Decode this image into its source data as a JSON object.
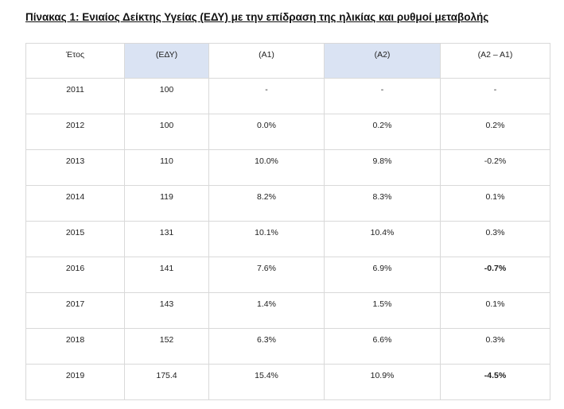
{
  "title": "Πίνακας 1: Ενιαίος Δείκτης Υγείας (ΕΔΥ) με την επίδραση της ηλικίας και ρυθμοί μεταβολής",
  "table": {
    "header": [
      "Έτος",
      "(ΕΔΥ)",
      "(Α1)",
      "(Α2)",
      "(Α2 – Α1)"
    ],
    "rows": [
      [
        "2011",
        "100",
        "-",
        "-",
        "-"
      ],
      [
        "2012",
        "100",
        "0.0%",
        "0.2%",
        "0.2%"
      ],
      [
        "2013",
        "110",
        "10.0%",
        "9.8%",
        "-0.2%"
      ],
      [
        "2014",
        "119",
        "8.2%",
        "8.3%",
        "0.1%"
      ],
      [
        "2015",
        "131",
        "10.1%",
        "10.4%",
        "0.3%"
      ],
      [
        "2016",
        "141",
        "7.6%",
        "6.9%",
        "-0.7%"
      ],
      [
        "2017",
        "143",
        "1.4%",
        "1.5%",
        "0.1%"
      ],
      [
        "2018",
        "152",
        "6.3%",
        "6.6%",
        "0.3%"
      ],
      [
        "2019",
        "175.4",
        "15.4%",
        "10.9%",
        "-4.5%"
      ]
    ]
  }
}
